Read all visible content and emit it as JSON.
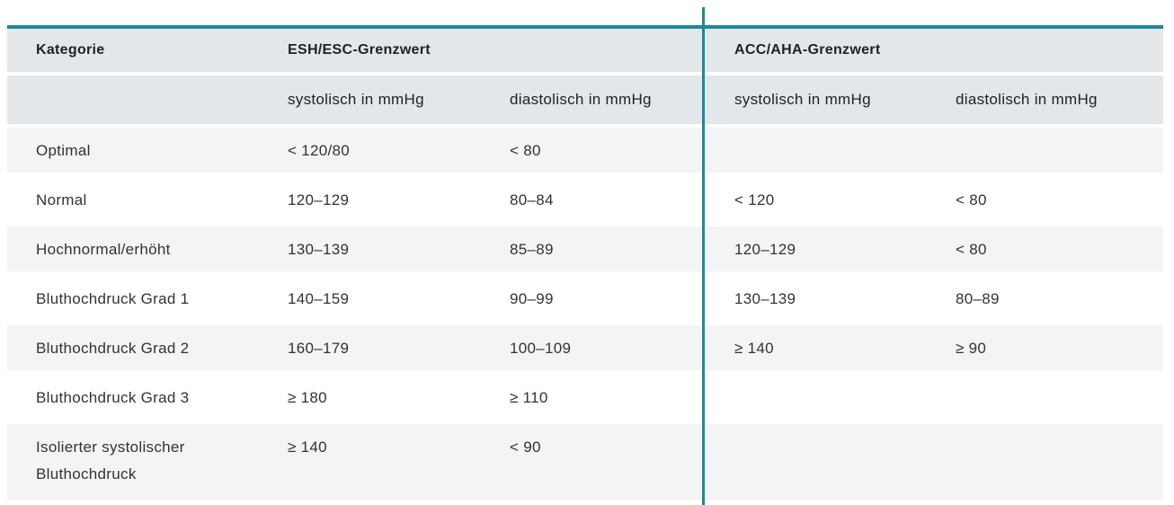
{
  "table": {
    "groups": [
      "Kategorie",
      "ESH/ESC-Grenzwert",
      "ACC/AHA-Grenzwert"
    ],
    "subheaders": [
      "systolisch in mmHg",
      "diastolisch in mmHg",
      "systolisch in mmHg",
      "diastolisch in mmHg"
    ],
    "rows": [
      [
        "Optimal",
        "< 120/80",
        "< 80"
      ],
      [
        "Normal",
        "120–129",
        "80–84",
        "< 120",
        "< 80"
      ],
      [
        "Hochnormal/erhöht",
        "130–139",
        "85–89",
        "120–129",
        "< 80"
      ],
      [
        "Bluthochdruck Grad 1",
        "140–159",
        "90–99",
        "130–139",
        "80–89"
      ],
      [
        "Bluthochdruck Grad 2",
        "160–179",
        "100–109",
        "≥ 140",
        "≥ 90"
      ],
      [
        "Bluthochdruck Grad 3",
        "≥ 180",
        "≥ 110"
      ],
      [
        "Isolierter systolischer Bluthochdruck",
        "≥ 140",
        "< 90"
      ]
    ]
  }
}
